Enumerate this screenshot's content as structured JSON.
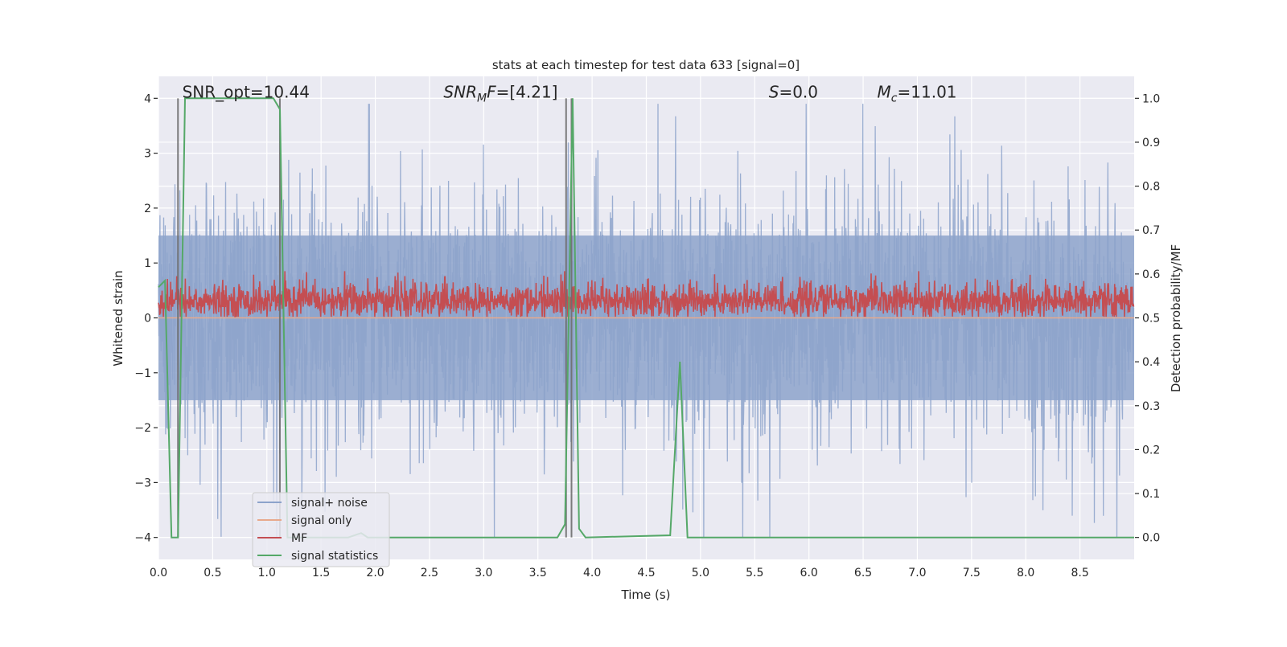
{
  "chart_data": {
    "type": "line",
    "title": "stats at each timestep for test data 633 [signal=0]",
    "xlabel": "Time (s)",
    "ylabel": "Whitened strain",
    "ylabel_right": "Detection probability/MF",
    "xlim": [
      0,
      9.0
    ],
    "ylim": [
      -4.4,
      4.4
    ],
    "ylim_right": [
      -0.05,
      1.05
    ],
    "xticks": [
      "0.0",
      "0.5",
      "1.0",
      "1.5",
      "2.0",
      "2.5",
      "3.0",
      "3.5",
      "4.0",
      "4.5",
      "5.0",
      "5.5",
      "6.0",
      "6.5",
      "7.0",
      "7.5",
      "8.0",
      "8.5"
    ],
    "yticks": [
      "−4",
      "−3",
      "−2",
      "−1",
      "0",
      "1",
      "2",
      "3",
      "4"
    ],
    "yticks_right": [
      "0.0",
      "0.1",
      "0.2",
      "0.3",
      "0.4",
      "0.5",
      "0.6",
      "0.7",
      "0.8",
      "0.9",
      "1.0"
    ],
    "grid": true,
    "legend_placement": "lower-left",
    "series": [
      {
        "name": "signal+ noise",
        "color": "#8da3cb",
        "axis": "left",
        "kind": "dense noise, spikes to about ±4"
      },
      {
        "name": "signal only",
        "color": "#e8a98c",
        "axis": "left",
        "values_constant": 0
      },
      {
        "name": "MF",
        "color": "#c44e52",
        "axis": "left",
        "kind": "noise between 0 and 0.8"
      },
      {
        "name": "signal statistics",
        "color": "#55a868",
        "axis": "right",
        "x": [
          0,
          0.06,
          0.12,
          0.18,
          0.245,
          1.06,
          1.12,
          1.19,
          1.75,
          1.87,
          1.93,
          3.68,
          3.75,
          3.82,
          3.88,
          3.94,
          4.72,
          4.81,
          4.88,
          9.0
        ],
        "y": [
          0.57,
          0.585,
          0.0,
          0.0,
          1.0,
          1.0,
          0.975,
          0.0,
          0.0,
          0.01,
          0.0,
          0.0,
          0.03,
          1.0,
          0.02,
          0.0,
          0.005,
          0.4,
          0.0,
          0.0
        ]
      }
    ],
    "vlines": {
      "color": "#6e6e6e",
      "x": [
        0.18,
        1.12,
        3.76,
        3.81
      ],
      "ymin": -4,
      "ymax": 4
    },
    "annotations": [
      {
        "text": "SNR_opt=10.44",
        "x": 0.19,
        "y": 4.0
      },
      {
        "text_main": "SNR",
        "text_sub": "M",
        "text_rest": "F=[4.21]",
        "x": 2.6,
        "y": 4.0
      },
      {
        "text_main": "S",
        "text_rest": "=0.0",
        "x": 5.6,
        "y": 4.0
      },
      {
        "text_main": "M",
        "text_sub": "c",
        "text_rest": "=11.01",
        "x": 6.6,
        "y": 4.0
      }
    ],
    "colors": {
      "axes_bg": "#eaeaf2",
      "grid": "#ffffff"
    }
  }
}
